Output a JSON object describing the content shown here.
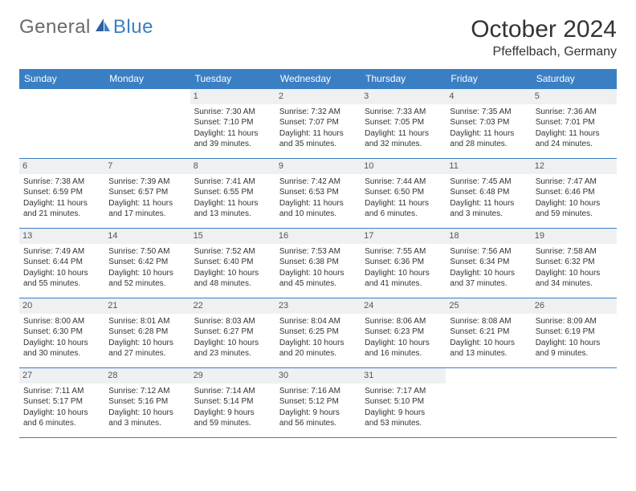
{
  "logo": {
    "part1": "General",
    "part2": "Blue"
  },
  "title": "October 2024",
  "location": "Pfeffelbach, Germany",
  "dayNames": [
    "Sunday",
    "Monday",
    "Tuesday",
    "Wednesday",
    "Thursday",
    "Friday",
    "Saturday"
  ],
  "colors": {
    "accent": "#3a7fc4",
    "daynum_bg": "#eef0f2",
    "text": "#333333",
    "logo_gray": "#6a6a6a"
  },
  "weeks": [
    [
      {
        "day": "",
        "sunrise": "",
        "sunset": "",
        "daylight1": "",
        "daylight2": ""
      },
      {
        "day": "",
        "sunrise": "",
        "sunset": "",
        "daylight1": "",
        "daylight2": ""
      },
      {
        "day": "1",
        "sunrise": "Sunrise: 7:30 AM",
        "sunset": "Sunset: 7:10 PM",
        "daylight1": "Daylight: 11 hours",
        "daylight2": "and 39 minutes."
      },
      {
        "day": "2",
        "sunrise": "Sunrise: 7:32 AM",
        "sunset": "Sunset: 7:07 PM",
        "daylight1": "Daylight: 11 hours",
        "daylight2": "and 35 minutes."
      },
      {
        "day": "3",
        "sunrise": "Sunrise: 7:33 AM",
        "sunset": "Sunset: 7:05 PM",
        "daylight1": "Daylight: 11 hours",
        "daylight2": "and 32 minutes."
      },
      {
        "day": "4",
        "sunrise": "Sunrise: 7:35 AM",
        "sunset": "Sunset: 7:03 PM",
        "daylight1": "Daylight: 11 hours",
        "daylight2": "and 28 minutes."
      },
      {
        "day": "5",
        "sunrise": "Sunrise: 7:36 AM",
        "sunset": "Sunset: 7:01 PM",
        "daylight1": "Daylight: 11 hours",
        "daylight2": "and 24 minutes."
      }
    ],
    [
      {
        "day": "6",
        "sunrise": "Sunrise: 7:38 AM",
        "sunset": "Sunset: 6:59 PM",
        "daylight1": "Daylight: 11 hours",
        "daylight2": "and 21 minutes."
      },
      {
        "day": "7",
        "sunrise": "Sunrise: 7:39 AM",
        "sunset": "Sunset: 6:57 PM",
        "daylight1": "Daylight: 11 hours",
        "daylight2": "and 17 minutes."
      },
      {
        "day": "8",
        "sunrise": "Sunrise: 7:41 AM",
        "sunset": "Sunset: 6:55 PM",
        "daylight1": "Daylight: 11 hours",
        "daylight2": "and 13 minutes."
      },
      {
        "day": "9",
        "sunrise": "Sunrise: 7:42 AM",
        "sunset": "Sunset: 6:53 PM",
        "daylight1": "Daylight: 11 hours",
        "daylight2": "and 10 minutes."
      },
      {
        "day": "10",
        "sunrise": "Sunrise: 7:44 AM",
        "sunset": "Sunset: 6:50 PM",
        "daylight1": "Daylight: 11 hours",
        "daylight2": "and 6 minutes."
      },
      {
        "day": "11",
        "sunrise": "Sunrise: 7:45 AM",
        "sunset": "Sunset: 6:48 PM",
        "daylight1": "Daylight: 11 hours",
        "daylight2": "and 3 minutes."
      },
      {
        "day": "12",
        "sunrise": "Sunrise: 7:47 AM",
        "sunset": "Sunset: 6:46 PM",
        "daylight1": "Daylight: 10 hours",
        "daylight2": "and 59 minutes."
      }
    ],
    [
      {
        "day": "13",
        "sunrise": "Sunrise: 7:49 AM",
        "sunset": "Sunset: 6:44 PM",
        "daylight1": "Daylight: 10 hours",
        "daylight2": "and 55 minutes."
      },
      {
        "day": "14",
        "sunrise": "Sunrise: 7:50 AM",
        "sunset": "Sunset: 6:42 PM",
        "daylight1": "Daylight: 10 hours",
        "daylight2": "and 52 minutes."
      },
      {
        "day": "15",
        "sunrise": "Sunrise: 7:52 AM",
        "sunset": "Sunset: 6:40 PM",
        "daylight1": "Daylight: 10 hours",
        "daylight2": "and 48 minutes."
      },
      {
        "day": "16",
        "sunrise": "Sunrise: 7:53 AM",
        "sunset": "Sunset: 6:38 PM",
        "daylight1": "Daylight: 10 hours",
        "daylight2": "and 45 minutes."
      },
      {
        "day": "17",
        "sunrise": "Sunrise: 7:55 AM",
        "sunset": "Sunset: 6:36 PM",
        "daylight1": "Daylight: 10 hours",
        "daylight2": "and 41 minutes."
      },
      {
        "day": "18",
        "sunrise": "Sunrise: 7:56 AM",
        "sunset": "Sunset: 6:34 PM",
        "daylight1": "Daylight: 10 hours",
        "daylight2": "and 37 minutes."
      },
      {
        "day": "19",
        "sunrise": "Sunrise: 7:58 AM",
        "sunset": "Sunset: 6:32 PM",
        "daylight1": "Daylight: 10 hours",
        "daylight2": "and 34 minutes."
      }
    ],
    [
      {
        "day": "20",
        "sunrise": "Sunrise: 8:00 AM",
        "sunset": "Sunset: 6:30 PM",
        "daylight1": "Daylight: 10 hours",
        "daylight2": "and 30 minutes."
      },
      {
        "day": "21",
        "sunrise": "Sunrise: 8:01 AM",
        "sunset": "Sunset: 6:28 PM",
        "daylight1": "Daylight: 10 hours",
        "daylight2": "and 27 minutes."
      },
      {
        "day": "22",
        "sunrise": "Sunrise: 8:03 AM",
        "sunset": "Sunset: 6:27 PM",
        "daylight1": "Daylight: 10 hours",
        "daylight2": "and 23 minutes."
      },
      {
        "day": "23",
        "sunrise": "Sunrise: 8:04 AM",
        "sunset": "Sunset: 6:25 PM",
        "daylight1": "Daylight: 10 hours",
        "daylight2": "and 20 minutes."
      },
      {
        "day": "24",
        "sunrise": "Sunrise: 8:06 AM",
        "sunset": "Sunset: 6:23 PM",
        "daylight1": "Daylight: 10 hours",
        "daylight2": "and 16 minutes."
      },
      {
        "day": "25",
        "sunrise": "Sunrise: 8:08 AM",
        "sunset": "Sunset: 6:21 PM",
        "daylight1": "Daylight: 10 hours",
        "daylight2": "and 13 minutes."
      },
      {
        "day": "26",
        "sunrise": "Sunrise: 8:09 AM",
        "sunset": "Sunset: 6:19 PM",
        "daylight1": "Daylight: 10 hours",
        "daylight2": "and 9 minutes."
      }
    ],
    [
      {
        "day": "27",
        "sunrise": "Sunrise: 7:11 AM",
        "sunset": "Sunset: 5:17 PM",
        "daylight1": "Daylight: 10 hours",
        "daylight2": "and 6 minutes."
      },
      {
        "day": "28",
        "sunrise": "Sunrise: 7:12 AM",
        "sunset": "Sunset: 5:16 PM",
        "daylight1": "Daylight: 10 hours",
        "daylight2": "and 3 minutes."
      },
      {
        "day": "29",
        "sunrise": "Sunrise: 7:14 AM",
        "sunset": "Sunset: 5:14 PM",
        "daylight1": "Daylight: 9 hours",
        "daylight2": "and 59 minutes."
      },
      {
        "day": "30",
        "sunrise": "Sunrise: 7:16 AM",
        "sunset": "Sunset: 5:12 PM",
        "daylight1": "Daylight: 9 hours",
        "daylight2": "and 56 minutes."
      },
      {
        "day": "31",
        "sunrise": "Sunrise: 7:17 AM",
        "sunset": "Sunset: 5:10 PM",
        "daylight1": "Daylight: 9 hours",
        "daylight2": "and 53 minutes."
      },
      {
        "day": "",
        "sunrise": "",
        "sunset": "",
        "daylight1": "",
        "daylight2": ""
      },
      {
        "day": "",
        "sunrise": "",
        "sunset": "",
        "daylight1": "",
        "daylight2": ""
      }
    ]
  ]
}
